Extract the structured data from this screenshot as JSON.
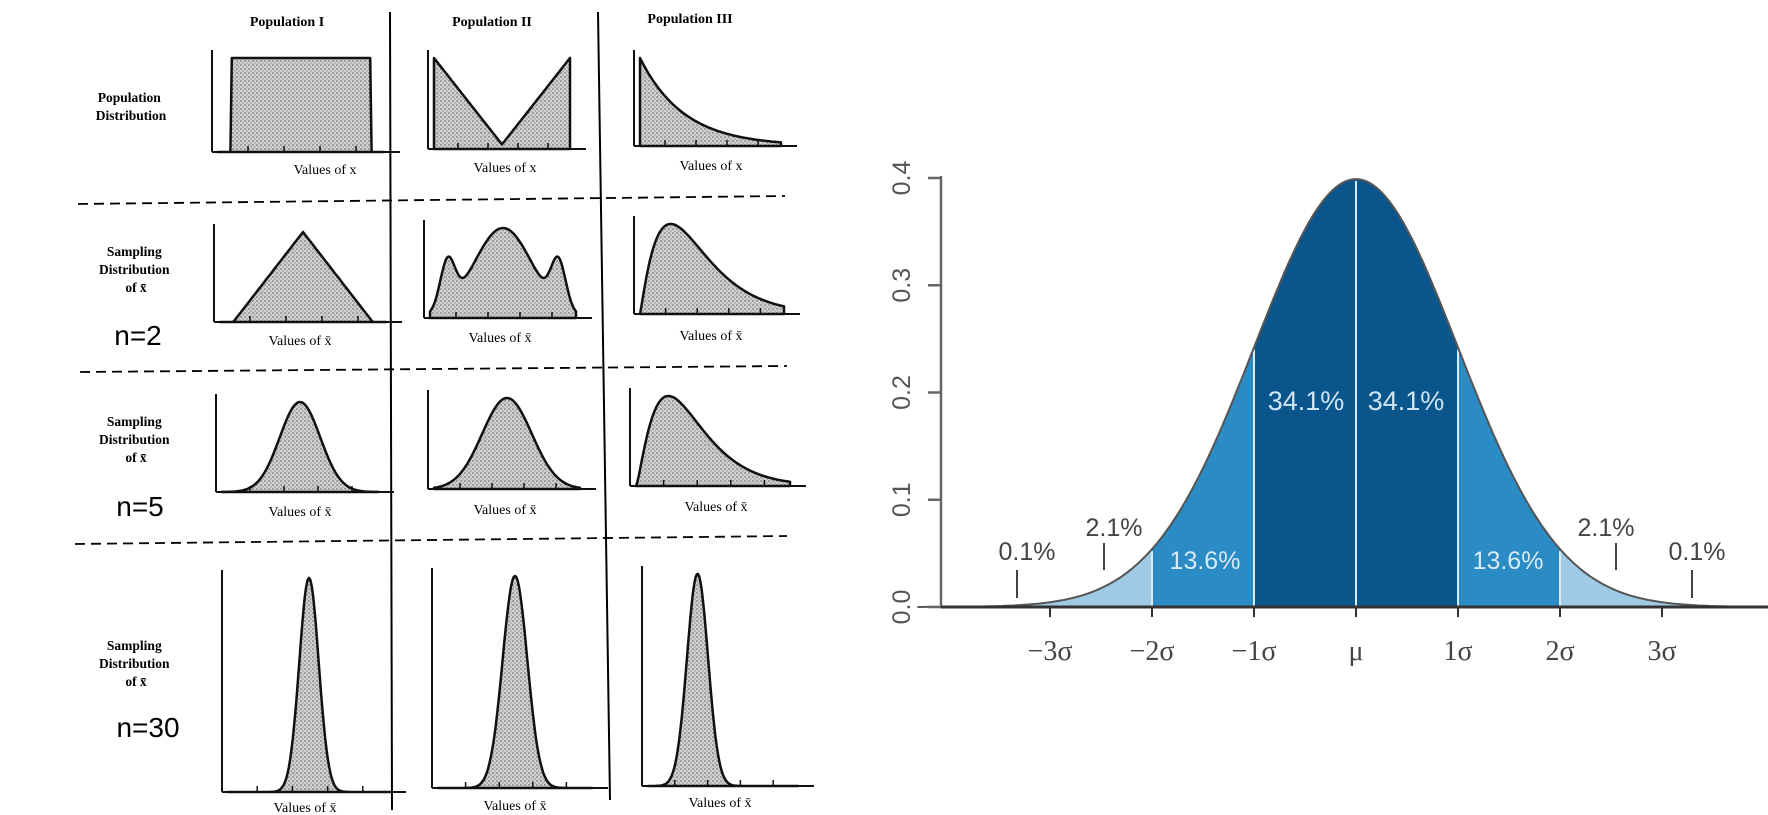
{
  "left_panel": {
    "columns": [
      "Population I",
      "Population II",
      "Population III"
    ],
    "rows": [
      {
        "label_lines": [
          "Population",
          "Distribution"
        ],
        "n_label": "",
        "xlabel": "Values of x"
      },
      {
        "label_lines": [
          "Sampling",
          "Distribution",
          "of x̄"
        ],
        "n_label": "n=2",
        "xlabel": "Values of x̄"
      },
      {
        "label_lines": [
          "Sampling",
          "Distribution",
          "of x̄"
        ],
        "n_label": "n=5",
        "xlabel": "Values of x̄"
      },
      {
        "label_lines": [
          "Sampling",
          "Distribution",
          "of x̄"
        ],
        "n_label": "n=30",
        "xlabel": "Values of x̄"
      }
    ]
  },
  "right_panel": {
    "y_ticks": [
      "0.0",
      "0.1",
      "0.2",
      "0.3",
      "0.4"
    ],
    "x_ticks": [
      "−3σ",
      "−2σ",
      "−1σ",
      "μ",
      "1σ",
      "2σ",
      "3σ"
    ],
    "percent_labels": {
      "tail_left": "0.1%",
      "outer_left": "2.1%",
      "mid_left": "13.6%",
      "inner_left": "34.1%",
      "inner_right": "34.1%",
      "mid_right": "13.6%",
      "outer_right": "2.1%",
      "tail_right": "0.1%"
    },
    "colors": {
      "inner": "#0a568c",
      "mid": "#2b8bc4",
      "outer": "#6aaed6",
      "tail": "#9fcbe6"
    }
  }
}
